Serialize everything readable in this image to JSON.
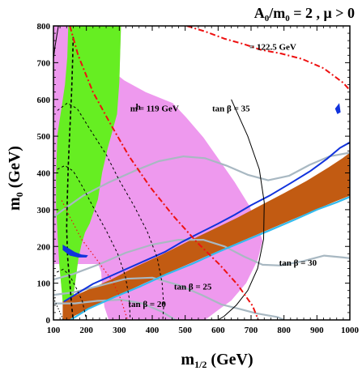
{
  "chart_data": {
    "type": "area",
    "title": "A",
    "title_parts": {
      "a": "A",
      "a_sub": "0",
      "slash": "/m",
      "m_sub": "0",
      "rest": " = 2 ,  μ > 0"
    },
    "xlabel": "m",
    "xlabel_sub": "1/2",
    "xlabel_unit": " (GeV)",
    "ylabel": "m",
    "ylabel_sub": "0",
    "ylabel_unit": " (GeV)",
    "xlim": [
      100,
      1000
    ],
    "ylim": [
      0,
      800
    ],
    "xticks": [
      100,
      200,
      300,
      400,
      500,
      600,
      700,
      800,
      900,
      1000
    ],
    "yticks": [
      0,
      100,
      200,
      300,
      400,
      500,
      600,
      700,
      800
    ],
    "grid": false,
    "colors": {
      "green_region": "#66ee22",
      "pink_region": "#ee99ee",
      "brown_region": "#c25b12",
      "blue_region": "#1133dd",
      "cyan_line": "#33bbee",
      "gray_lines": "#a8b8c2",
      "red_lines": "#ee1111",
      "black_lines": "#000000"
    },
    "annotations": [
      {
        "id": "higgs_1225",
        "text": "= 122.5 GeV",
        "x": 695,
        "y": 735
      },
      {
        "id": "higgs_119_m",
        "text": "m",
        "x": 333,
        "y": 568
      },
      {
        "id": "higgs_119_sub",
        "text": "h",
        "x": 350,
        "y": 572
      },
      {
        "id": "higgs_119_val",
        "text": " = 119 GeV",
        "x": 360,
        "y": 568
      },
      {
        "id": "tanb35",
        "text": "tan β = 35",
        "x": 582,
        "y": 567
      },
      {
        "id": "tanb30",
        "text": "tan β = 30",
        "x": 785,
        "y": 148
      },
      {
        "id": "tanb25",
        "text": "tan β = 25",
        "x": 466,
        "y": 83
      },
      {
        "id": "tanb20",
        "text": "tan β = 20",
        "x": 327,
        "y": 35
      }
    ],
    "regions": {
      "green": [
        [
          145,
          800
        ],
        [
          305,
          800
        ],
        [
          300,
          645
        ],
        [
          293,
          560
        ],
        [
          265,
          468
        ],
        [
          248,
          402
        ],
        [
          235,
          328
        ],
        [
          210,
          262
        ],
        [
          196,
          238
        ],
        [
          185,
          205
        ],
        [
          176,
          168
        ],
        [
          163,
          80
        ],
        [
          152,
          0
        ],
        [
          130,
          0
        ],
        [
          130,
          28
        ],
        [
          125,
          80
        ],
        [
          118,
          148
        ],
        [
          113,
          220
        ],
        [
          108,
          310
        ],
        [
          108,
          400
        ],
        [
          112,
          505
        ],
        [
          125,
          580
        ],
        [
          135,
          640
        ],
        [
          142,
          715
        ],
        [
          145,
          800
        ]
      ],
      "pink": [
        [
          100,
          800
        ],
        [
          143,
          800
        ],
        [
          142,
          715
        ],
        [
          135,
          640
        ],
        [
          125,
          580
        ],
        [
          112,
          505
        ],
        [
          108,
          400
        ],
        [
          108,
          310
        ],
        [
          113,
          220
        ],
        [
          118,
          148
        ],
        [
          125,
          80
        ],
        [
          130,
          28
        ],
        [
          130,
          0
        ],
        [
          152,
          0
        ],
        [
          163,
          80
        ],
        [
          176,
          168
        ],
        [
          185,
          205
        ],
        [
          196,
          238
        ],
        [
          210,
          262
        ],
        [
          235,
          328
        ],
        [
          248,
          402
        ],
        [
          265,
          468
        ],
        [
          293,
          560
        ],
        [
          300,
          645
        ],
        [
          305,
          800
        ],
        [
          100,
          800
        ]
      ],
      "pink_right": [
        [
          100,
          800
        ],
        [
          232,
          800
        ],
        [
          238,
          740
        ],
        [
          255,
          695
        ],
        [
          315,
          652
        ],
        [
          380,
          620
        ],
        [
          462,
          590
        ],
        [
          502,
          552
        ],
        [
          555,
          497
        ],
        [
          605,
          433
        ],
        [
          650,
          375
        ],
        [
          695,
          310
        ],
        [
          722,
          250
        ],
        [
          735,
          215
        ],
        [
          720,
          163
        ],
        [
          685,
          100
        ],
        [
          640,
          53
        ],
        [
          602,
          28
        ],
        [
          560,
          0
        ],
        [
          268,
          0
        ],
        [
          255,
          35
        ],
        [
          248,
          80
        ],
        [
          245,
          130
        ],
        [
          236,
          152
        ],
        [
          100,
          152
        ]
      ],
      "brown": [
        [
          128,
          50
        ],
        [
          155,
          62
        ],
        [
          205,
          82
        ],
        [
          275,
          110
        ],
        [
          350,
          145
        ],
        [
          430,
          178
        ],
        [
          505,
          212
        ],
        [
          582,
          245
        ],
        [
          658,
          278
        ],
        [
          730,
          312
        ],
        [
          800,
          345
        ],
        [
          868,
          378
        ],
        [
          935,
          415
        ],
        [
          978,
          440
        ],
        [
          1000,
          455
        ],
        [
          1000,
          338
        ],
        [
          955,
          322
        ],
        [
          885,
          296
        ],
        [
          812,
          268
        ],
        [
          738,
          240
        ],
        [
          665,
          212
        ],
        [
          592,
          184
        ],
        [
          520,
          156
        ],
        [
          448,
          128
        ],
        [
          376,
          100
        ],
        [
          305,
          70
        ],
        [
          232,
          40
        ],
        [
          165,
          12
        ],
        [
          148,
          0
        ],
        [
          128,
          0
        ]
      ]
    },
    "lines": {
      "blue_upper": [
        [
          132,
          50
        ],
        [
          165,
          68
        ],
        [
          220,
          98
        ],
        [
          300,
          130
        ],
        [
          375,
          160
        ],
        [
          438,
          185
        ],
        [
          490,
          212
        ],
        [
          540,
          235
        ],
        [
          600,
          262
        ],
        [
          650,
          286
        ],
        [
          700,
          312
        ],
        [
          760,
          340
        ],
        [
          820,
          372
        ],
        [
          880,
          405
        ],
        [
          930,
          438
        ],
        [
          970,
          468
        ],
        [
          1000,
          483
        ]
      ],
      "cyan_lower": [
        [
          152,
          0
        ],
        [
          205,
          30
        ],
        [
          285,
          62
        ],
        [
          365,
          92
        ],
        [
          445,
          125
        ],
        [
          520,
          152
        ],
        [
          600,
          185
        ],
        [
          680,
          215
        ],
        [
          760,
          245
        ],
        [
          830,
          272
        ],
        [
          900,
          300
        ],
        [
          960,
          320
        ],
        [
          1000,
          335
        ]
      ],
      "tanb35": [
        [
          100,
          280
        ],
        [
          130,
          300
        ],
        [
          190,
          338
        ],
        [
          265,
          373
        ],
        [
          345,
          405
        ],
        [
          420,
          432
        ],
        [
          495,
          445
        ],
        [
          560,
          440
        ],
        [
          625,
          420
        ],
        [
          690,
          395
        ],
        [
          752,
          380
        ],
        [
          815,
          392
        ],
        [
          878,
          422
        ],
        [
          938,
          445
        ],
        [
          1000,
          455
        ]
      ],
      "tanb30": [
        [
          100,
          110
        ],
        [
          160,
          125
        ],
        [
          235,
          150
        ],
        [
          320,
          183
        ],
        [
          400,
          205
        ],
        [
          480,
          218
        ],
        [
          555,
          218
        ],
        [
          620,
          200
        ],
        [
          680,
          172
        ],
        [
          735,
          150
        ],
        [
          790,
          148
        ],
        [
          858,
          160
        ],
        [
          922,
          175
        ],
        [
          980,
          170
        ],
        [
          1000,
          168
        ]
      ],
      "tanb25": [
        [
          100,
          68
        ],
        [
          160,
          75
        ],
        [
          240,
          93
        ],
        [
          320,
          112
        ],
        [
          400,
          115
        ],
        [
          480,
          95
        ],
        [
          550,
          68
        ],
        [
          610,
          42
        ],
        [
          665,
          30
        ],
        [
          715,
          18
        ],
        [
          780,
          8
        ],
        [
          800,
          0
        ]
      ],
      "tanb20": [
        [
          100,
          45
        ],
        [
          165,
          45
        ],
        [
          235,
          52
        ],
        [
          305,
          55
        ],
        [
          370,
          45
        ],
        [
          430,
          22
        ],
        [
          470,
          0
        ]
      ],
      "red_122": [
        [
          505,
          800
        ],
        [
          560,
          785
        ],
        [
          620,
          765
        ],
        [
          680,
          750
        ],
        [
          730,
          735
        ],
        [
          790,
          725
        ],
        [
          855,
          710
        ],
        [
          920,
          685
        ],
        [
          980,
          645
        ],
        [
          1000,
          625
        ]
      ],
      "red_119": [
        [
          150,
          800
        ],
        [
          175,
          720
        ],
        [
          220,
          620
        ],
        [
          275,
          530
        ],
        [
          330,
          445
        ],
        [
          395,
          360
        ],
        [
          465,
          282
        ],
        [
          535,
          212
        ],
        [
          605,
          150
        ],
        [
          660,
          95
        ],
        [
          705,
          38
        ],
        [
          722,
          0
        ]
      ],
      "red_dots": [
        [
          125,
          325
        ],
        [
          150,
          280
        ],
        [
          185,
          220
        ],
        [
          235,
          160
        ],
        [
          280,
          105
        ],
        [
          305,
          55
        ],
        [
          325,
          0
        ]
      ],
      "black_boundary": [
        [
          115,
          800
        ],
        [
          105,
          745
        ],
        [
          100,
          710
        ]
      ],
      "black_right": [
        [
          640,
          600
        ],
        [
          690,
          500
        ],
        [
          725,
          410
        ],
        [
          740,
          320
        ],
        [
          738,
          220
        ],
        [
          720,
          140
        ],
        [
          690,
          80
        ],
        [
          655,
          40
        ],
        [
          618,
          10
        ],
        [
          600,
          0
        ]
      ],
      "dash1": [
        [
          160,
          770
        ],
        [
          158,
          700
        ],
        [
          155,
          620
        ],
        [
          150,
          520
        ],
        [
          145,
          420
        ],
        [
          142,
          330
        ],
        [
          140,
          250
        ],
        [
          143,
          170
        ],
        [
          150,
          100
        ],
        [
          155,
          40
        ],
        [
          160,
          0
        ]
      ],
      "dash2": [
        [
          112,
          570
        ],
        [
          142,
          590
        ],
        [
          172,
          575
        ],
        [
          210,
          520
        ],
        [
          260,
          450
        ],
        [
          300,
          380
        ],
        [
          345,
          310
        ],
        [
          385,
          240
        ],
        [
          415,
          170
        ],
        [
          430,
          100
        ],
        [
          435,
          40
        ],
        [
          432,
          0
        ]
      ],
      "dash3": [
        [
          112,
          410
        ],
        [
          135,
          420
        ],
        [
          160,
          405
        ],
        [
          190,
          360
        ],
        [
          225,
          300
        ],
        [
          262,
          240
        ],
        [
          295,
          180
        ],
        [
          318,
          120
        ],
        [
          330,
          60
        ],
        [
          333,
          0
        ]
      ],
      "dash4": [
        [
          110,
          130
        ],
        [
          130,
          138
        ],
        [
          150,
          120
        ],
        [
          170,
          85
        ],
        [
          188,
          50
        ],
        [
          200,
          0
        ]
      ],
      "cut_line": [
        [
          100,
          60
        ],
        [
          130,
          0
        ]
      ]
    }
  }
}
